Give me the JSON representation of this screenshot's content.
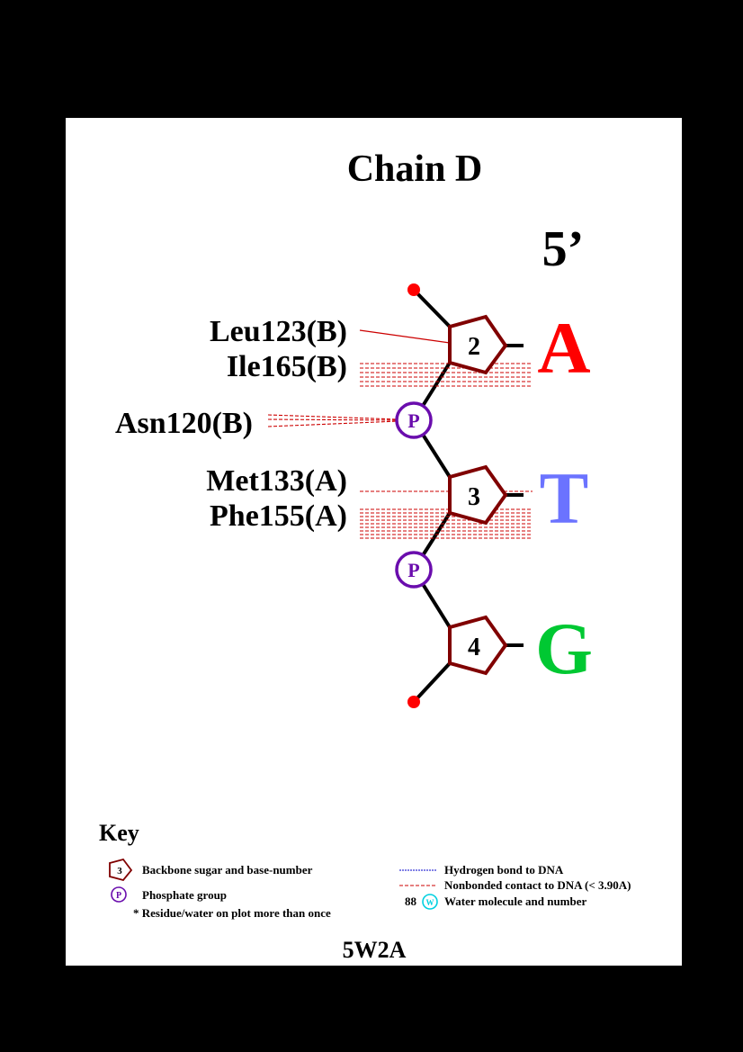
{
  "title": "Chain D",
  "strand_end": "5’",
  "residues": [
    {
      "number": "2",
      "base": "A",
      "base_color": "#ff0000"
    },
    {
      "number": "3",
      "base": "T",
      "base_color": "#6b73ff"
    },
    {
      "number": "4",
      "base": "G",
      "base_color": "#00c832"
    }
  ],
  "phosphate_label": "P",
  "contacts": {
    "leu123": "Leu123(B)",
    "ile165": "Ile165(B)",
    "asn120": "Asn120(B)",
    "met133": "Met133(A)",
    "phe155": "Phe155(A)"
  },
  "key": {
    "heading": "Key",
    "sugar_icon_number": "3",
    "sugar_desc": "Backbone sugar and base-number",
    "phosphate_icon_label": "P",
    "phosphate_desc": "Phosphate group",
    "multi_note": "* Residue/water on plot more than once",
    "hbond_desc": "Hydrogen bond to DNA",
    "nonbonded_desc": "Nonbonded contact to DNA (< 3.90A)",
    "water_number": "88",
    "water_icon_label": "W",
    "water_desc": "Water molecule and number"
  },
  "pdb_code": "5W2A",
  "colors": {
    "sugar": "#800000",
    "phosphate": "#6a0dad",
    "terminus": "#ff0000",
    "contact": "#cc0000",
    "hbond": "#0000cc",
    "water": "#00d0e0"
  }
}
